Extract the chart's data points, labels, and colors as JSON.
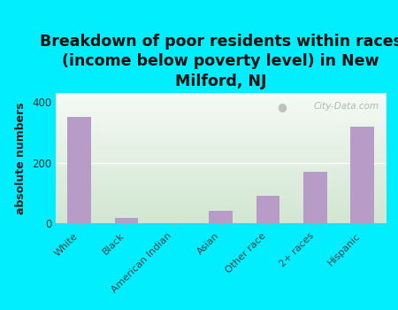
{
  "title": "Breakdown of poor residents within races\n(income below poverty level) in New\nMilford, NJ",
  "ylabel": "absolute numbers",
  "categories": [
    "White",
    "Black",
    "American Indian",
    "Asian",
    "Other race",
    "2+ races",
    "Hispanic"
  ],
  "values": [
    350,
    18,
    0,
    40,
    90,
    170,
    320
  ],
  "bar_color": "#b89cc8",
  "background_outer": "#00eeff",
  "ylim": [
    0,
    430
  ],
  "yticks": [
    0,
    200,
    400
  ],
  "title_fontsize": 12.5,
  "ylabel_fontsize": 9,
  "watermark": "City-Data.com"
}
